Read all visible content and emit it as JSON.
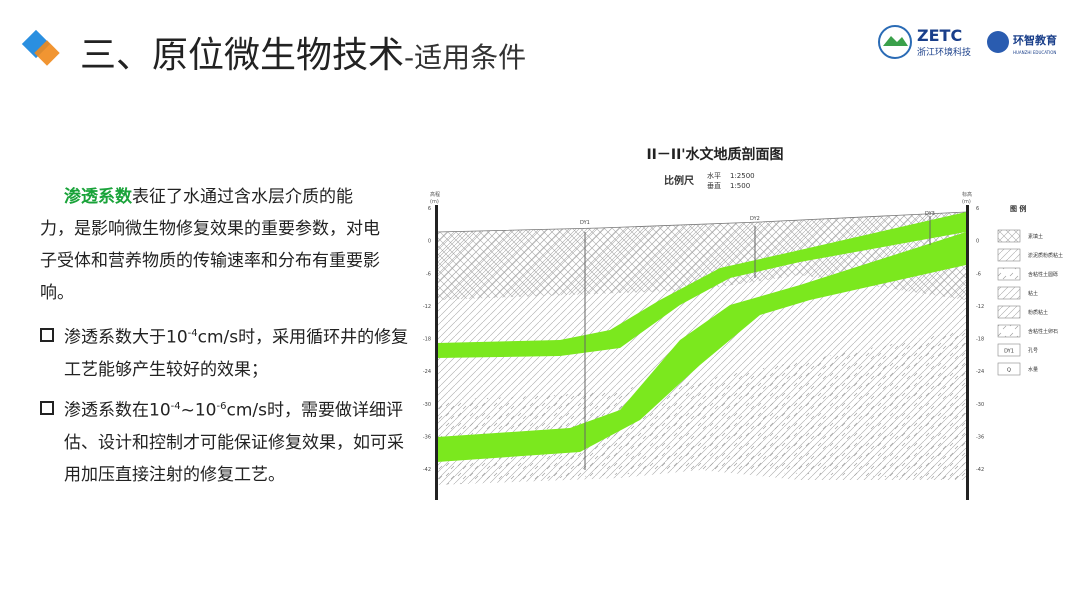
{
  "header": {
    "title": "三、原位微生物技术",
    "subtitle": "-适用条件",
    "logo_main": "ZETC",
    "logo_main_sub": "浙江环境科技",
    "logo_second": "环智教育",
    "logo_second_sub": "HUANZHI EDUCATION"
  },
  "intro": {
    "highlight": "渗透系数",
    "text": "表征了水通过含水层介质的能力，是影响微生物修复效果的重要参数，对电子受体和营养物质的传输速率和分布有重要影响。"
  },
  "bullets": [
    {
      "parts": [
        "渗透系数大于10",
        "-4",
        "cm/s时，采用循环井的修复工艺能够产生较好的效果；"
      ]
    },
    {
      "parts": [
        "渗透系数在10",
        "-4",
        "~10",
        "-6",
        "cm/s时，需要做详细评估、设计和控制才可能保证修复效果，如可采用加压直接注射的修复工艺。"
      ]
    }
  ],
  "diagram": {
    "title": "II－II'水文地质剖面图",
    "scale_label": "比例尺",
    "scale_h_label": "水平",
    "scale_h": "1:2500",
    "scale_v_label": "垂直",
    "scale_v": "1:500",
    "axis_left_label": "高程",
    "axis_right_label": "标高",
    "axis_unit": "(m)",
    "ticks": [
      6,
      0,
      -6,
      -12,
      -18,
      -24,
      -30,
      -36,
      -42
    ],
    "boreholes": [
      "DY1",
      "DY2",
      "DY3"
    ],
    "legend_title": "图  例",
    "legend": [
      "素填土",
      "淤泥质粉质粘土",
      "含粘性土圆砾",
      "粘土",
      "粉质粘土",
      "含粘性土卵石",
      "孔号",
      "水量"
    ],
    "legend_symbols": [
      "DY1",
      "Q"
    ]
  }
}
